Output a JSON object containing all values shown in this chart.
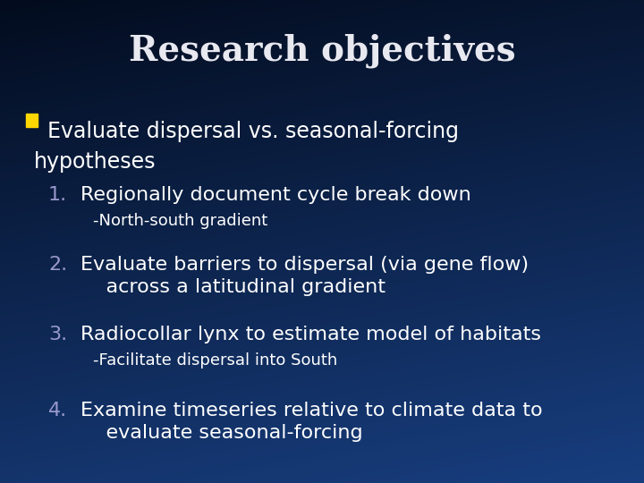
{
  "title": "Research objectives",
  "title_fontsize": 28,
  "title_color": "#E8E8F0",
  "background_tl": "#020818",
  "background_br": "#1a4aaa",
  "bullet_color": "#FFD700",
  "bullet_text_line1": "Evaluate dispersal vs. seasonal-forcing",
  "bullet_text_line2": "  hypotheses",
  "bullet_fontsize": 17,
  "number_color": "#9999CC",
  "text_color": "#FFFFFF",
  "items": [
    {
      "number": "1.",
      "text": "Regionally document cycle break down",
      "sub": "-North-south gradient",
      "text_fontsize": 16,
      "sub_fontsize": 13
    },
    {
      "number": "2.",
      "text": "Evaluate barriers to dispersal (via gene flow)\n    across a latitudinal gradient",
      "sub": "",
      "text_fontsize": 16,
      "sub_fontsize": 13
    },
    {
      "number": "3.",
      "text": "Radiocollar lynx to estimate model of habitats",
      "sub": "-Facilitate dispersal into South",
      "text_fontsize": 16,
      "sub_fontsize": 13
    },
    {
      "number": "4.",
      "text": "Examine timeseries relative to climate data to\n    evaluate seasonal-forcing",
      "sub": "",
      "text_fontsize": 16,
      "sub_fontsize": 13
    }
  ]
}
